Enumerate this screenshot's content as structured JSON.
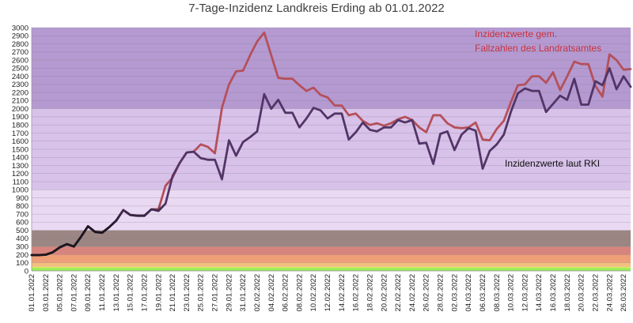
{
  "chart_data": {
    "type": "line",
    "title": "7-Tage-Inzidenz Landkreis Erding ab 01.01.2022",
    "ylim": [
      0,
      3000
    ],
    "yticks": [
      0,
      100,
      200,
      300,
      400,
      500,
      600,
      700,
      800,
      900,
      1000,
      1100,
      1200,
      1300,
      1400,
      1500,
      1600,
      1700,
      1800,
      1900,
      2000,
      2100,
      2200,
      2300,
      2400,
      2500,
      2600,
      2700,
      2800,
      2900,
      3000
    ],
    "grid": true,
    "x_start": "01.01.2022",
    "x_end": "27.03.2022",
    "xtick_labels": [
      "01.01.2022",
      "03.01.2022",
      "05.01.2022",
      "07.01.2022",
      "09.01.2022",
      "11.01.2022",
      "13.01.2022",
      "15.01.2022",
      "17.01.2022",
      "19.01.2022",
      "21.01.2022",
      "23.01.2022",
      "25.01.2022",
      "27.01.2022",
      "29.01.2022",
      "31.01.2022",
      "02.02.2022",
      "04.02.2022",
      "06.02.2022",
      "08.02.2022",
      "10.02.2022",
      "12.02.2022",
      "14.02.2022",
      "16.02.2022",
      "18.02.2022",
      "20.02.2022",
      "22.02.2022",
      "24.02.2022",
      "26.02.2022",
      "28.02.2022",
      "02.03.2022",
      "04.03.2022",
      "06.03.2022",
      "08.03.2022",
      "10.03.2022",
      "12.03.2022",
      "14.03.2022",
      "16.03.2022",
      "18.03.2022",
      "20.03.2022",
      "22.03.2022",
      "24.03.2022",
      "26.03.2022"
    ],
    "background_bands": [
      {
        "from": 0,
        "to": 35,
        "color": "#99ee55"
      },
      {
        "from": 35,
        "to": 50,
        "color": "#cfe860"
      },
      {
        "from": 50,
        "to": 100,
        "color": "#f3c080"
      },
      {
        "from": 100,
        "to": 200,
        "color": "#ef9f78"
      },
      {
        "from": 200,
        "to": 300,
        "color": "#d7847f"
      },
      {
        "from": 300,
        "to": 500,
        "color": "#9b8683"
      },
      {
        "from": 500,
        "to": 1000,
        "color": "#ead9f2"
      },
      {
        "from": 1000,
        "to": 2000,
        "color": "#d8c2ea"
      },
      {
        "from": 2000,
        "to": 3000,
        "color": "#b59ad2"
      }
    ],
    "series": [
      {
        "name": "Inzidenzwerte gem. Fallzahlen des Landratsamtes",
        "color": "#b5505a",
        "values": [
          195,
          195,
          200,
          230,
          290,
          330,
          300,
          420,
          550,
          480,
          470,
          540,
          620,
          750,
          690,
          680,
          680,
          760,
          760,
          1050,
          1150,
          1330,
          1460,
          1470,
          1560,
          1530,
          1450,
          2010,
          2300,
          2460,
          2470,
          2660,
          2830,
          2940,
          2660,
          2380,
          2370,
          2370,
          2290,
          2220,
          2260,
          2170,
          2140,
          2040,
          2040,
          1920,
          1940,
          1850,
          1800,
          1820,
          1790,
          1820,
          1870,
          1900,
          1860,
          1770,
          1710,
          1920,
          1920,
          1820,
          1770,
          1760,
          1770,
          1830,
          1620,
          1610,
          1750,
          1850,
          2080,
          2290,
          2300,
          2400,
          2400,
          2320,
          2450,
          2230,
          2400,
          2580,
          2550,
          2550,
          2280,
          2150,
          2670,
          2600,
          2480,
          2490
        ]
      },
      {
        "name": "Inzidenzwerte laut RKI",
        "color": "#523566",
        "values": [
          195,
          195,
          200,
          230,
          290,
          330,
          300,
          420,
          550,
          480,
          470,
          540,
          620,
          750,
          690,
          680,
          680,
          760,
          740,
          830,
          1170,
          1330,
          1460,
          1470,
          1390,
          1370,
          1370,
          1130,
          1610,
          1420,
          1590,
          1650,
          1720,
          2180,
          2000,
          2110,
          1950,
          1950,
          1770,
          1880,
          2010,
          1980,
          1880,
          1940,
          1940,
          1620,
          1710,
          1830,
          1740,
          1720,
          1770,
          1770,
          1860,
          1830,
          1860,
          1570,
          1580,
          1320,
          1690,
          1720,
          1490,
          1680,
          1760,
          1730,
          1260,
          1480,
          1560,
          1680,
          1960,
          2190,
          2250,
          2220,
          2220,
          1960,
          2060,
          2160,
          2110,
          2370,
          2050,
          2050,
          2340,
          2290,
          2500,
          2240,
          2400,
          2270
        ]
      }
    ],
    "annotations": [
      {
        "lines": [
          "Inzidenzwerte gem.",
          "Fallzahlen des Landratsamtes"
        ],
        "color": "#c8323c"
      },
      {
        "lines": [
          "Inzidenzwerte laut RKI"
        ],
        "color": "#111111"
      }
    ]
  }
}
